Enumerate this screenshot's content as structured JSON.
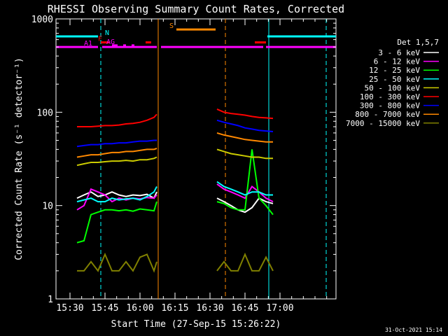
{
  "chart_data": {
    "type": "line",
    "title": "RHESSI Observing Summary Count Rates, Corrected",
    "xlabel": "Start Time (27-Sep-15 15:26:22)",
    "ylabel": "Corrected Count Rate (s⁻¹ detector⁻¹)",
    "y_scale": "log",
    "ylim": [
      1,
      1000
    ],
    "y_ticks": [
      1,
      10,
      100,
      1000
    ],
    "y_tick_labels": [
      "1",
      "10",
      "100",
      "1000"
    ],
    "xlim_minutes": [
      15.4,
      17.4
    ],
    "x_ticks": [
      "15:30",
      "15:45",
      "16:00",
      "16:15",
      "16:30",
      "16:45",
      "17:00"
    ],
    "legend_title": "Det 1,5,7",
    "legend_placement": "right",
    "footer_date": "31-Oct-2021 15:14",
    "series": [
      {
        "name": "3 - 6 keV",
        "color": "#ffffff",
        "segments": [
          {
            "x": [
              15.55,
              15.6,
              15.65,
              15.7,
              15.75,
              15.8,
              15.85,
              15.9,
              15.95,
              16.0,
              16.05,
              16.1,
              16.12
            ],
            "y": [
              12,
              13,
              14,
              12.5,
              13,
              14,
              13,
              12.5,
              13,
              12.8,
              13.2,
              12,
              14
            ]
          },
          {
            "x": [
              16.55,
              16.6,
              16.65,
              16.7,
              16.75,
              16.8,
              16.85,
              16.9,
              16.95
            ],
            "y": [
              12,
              11,
              10,
              9,
              8.5,
              9.5,
              12,
              11,
              10.5
            ]
          }
        ]
      },
      {
        "name": "6 - 12 keV",
        "color": "#ff00ff",
        "segments": [
          {
            "x": [
              15.55,
              15.6,
              15.65,
              15.7,
              15.75,
              15.8,
              15.85,
              15.9,
              15.95,
              16.0,
              16.05,
              16.1,
              16.12
            ],
            "y": [
              9,
              10,
              15,
              14,
              13,
              11,
              12,
              11.5,
              12,
              11.8,
              12.2,
              12,
              13
            ]
          },
          {
            "x": [
              16.55,
              16.6,
              16.65,
              16.7,
              16.75,
              16.8,
              16.85,
              16.9,
              16.95
            ],
            "y": [
              17,
              15,
              14,
              13,
              12,
              16,
              14,
              12,
              11
            ]
          }
        ]
      },
      {
        "name": "12 - 25 keV",
        "color": "#00ff00",
        "segments": [
          {
            "x": [
              15.55,
              15.6,
              15.65,
              15.7,
              15.75,
              15.8,
              15.85,
              15.9,
              15.95,
              16.0,
              16.05,
              16.1,
              16.12
            ],
            "y": [
              4,
              4.2,
              8,
              8.5,
              9,
              9,
              8.8,
              9,
              8.7,
              9.2,
              9,
              8.8,
              11
            ]
          },
          {
            "x": [
              16.55,
              16.6,
              16.65,
              16.7,
              16.75,
              16.8,
              16.85,
              16.9,
              16.95
            ],
            "y": [
              11,
              10.5,
              9.5,
              9,
              9,
              40,
              12,
              10,
              8
            ]
          }
        ]
      },
      {
        "name": "25 - 50 keV",
        "color": "#00ffff",
        "segments": [
          {
            "x": [
              15.55,
              15.6,
              15.65,
              15.7,
              15.75,
              15.8,
              15.85,
              15.9,
              15.95,
              16.0,
              16.05,
              16.1,
              16.12
            ],
            "y": [
              11,
              11.5,
              12,
              11,
              11,
              12,
              11.5,
              11.8,
              12,
              11.5,
              12.5,
              14,
              16
            ]
          },
          {
            "x": [
              16.55,
              16.6,
              16.65,
              16.7,
              16.75,
              16.8,
              16.85,
              16.9,
              16.95
            ],
            "y": [
              18,
              16,
              15,
              14,
              13,
              14,
              14,
              13,
              13
            ]
          }
        ]
      },
      {
        "name": "50 - 100 keV",
        "color": "#cccc00",
        "segments": [
          {
            "x": [
              15.55,
              15.6,
              15.65,
              15.7,
              15.75,
              15.8,
              15.85,
              15.9,
              15.95,
              16.0,
              16.05,
              16.1,
              16.12
            ],
            "y": [
              27,
              28,
              29,
              29,
              29.5,
              30,
              30,
              30.5,
              30,
              31,
              31,
              32,
              33
            ]
          },
          {
            "x": [
              16.55,
              16.6,
              16.65,
              16.7,
              16.75,
              16.8,
              16.85,
              16.9,
              16.95
            ],
            "y": [
              40,
              38,
              36,
              35,
              34,
              33,
              33,
              32,
              32
            ]
          }
        ]
      },
      {
        "name": "100 - 300 keV",
        "color": "#ff0000",
        "segments": [
          {
            "x": [
              15.55,
              15.6,
              15.65,
              15.7,
              15.75,
              15.8,
              15.85,
              15.9,
              15.95,
              16.0,
              16.05,
              16.1,
              16.12
            ],
            "y": [
              70,
              70,
              70,
              71,
              72,
              72,
              73,
              75,
              76,
              78,
              82,
              88,
              95
            ]
          },
          {
            "x": [
              16.55,
              16.6,
              16.65,
              16.7,
              16.75,
              16.8,
              16.85,
              16.9,
              16.95
            ],
            "y": [
              108,
              100,
              97,
              95,
              93,
              90,
              88,
              87,
              86
            ]
          }
        ]
      },
      {
        "name": "300 - 800 keV",
        "color": "#0000ff",
        "segments": [
          {
            "x": [
              15.55,
              15.6,
              15.65,
              15.7,
              15.75,
              15.8,
              15.85,
              15.9,
              15.95,
              16.0,
              16.05,
              16.1,
              16.12
            ],
            "y": [
              43,
              44,
              45,
              45,
              46,
              46,
              47,
              47,
              48,
              49,
              49,
              50,
              50
            ]
          },
          {
            "x": [
              16.55,
              16.6,
              16.65,
              16.7,
              16.75,
              16.8,
              16.85,
              16.9,
              16.95
            ],
            "y": [
              82,
              78,
              75,
              72,
              68,
              66,
              64,
              63,
              62
            ]
          }
        ]
      },
      {
        "name": "800 - 7000 keV",
        "color": "#ff8800",
        "segments": [
          {
            "x": [
              15.55,
              15.6,
              15.65,
              15.7,
              15.75,
              15.8,
              15.85,
              15.9,
              15.95,
              16.0,
              16.05,
              16.1,
              16.12
            ],
            "y": [
              33,
              34,
              35,
              35,
              36,
              37,
              37,
              38,
              38,
              39,
              40,
              40,
              41
            ]
          },
          {
            "x": [
              16.55,
              16.6,
              16.65,
              16.7,
              16.75,
              16.8,
              16.85,
              16.9,
              16.95
            ],
            "y": [
              60,
              57,
              55,
              53,
              51,
              50,
              49,
              48,
              48
            ]
          }
        ]
      },
      {
        "name": "7000 - 15000 keV",
        "color": "#808000",
        "segments": [
          {
            "x": [
              15.55,
              15.6,
              15.65,
              15.7,
              15.75,
              15.8,
              15.85,
              15.9,
              15.95,
              16.0,
              16.05,
              16.1,
              16.12
            ],
            "y": [
              2,
              2,
              2.5,
              2,
              3,
              2,
              2,
              2.5,
              2,
              2.8,
              3,
              2,
              2.5
            ]
          },
          {
            "x": [
              16.55,
              16.6,
              16.65,
              16.7,
              16.75,
              16.8,
              16.85,
              16.9,
              16.95
            ],
            "y": [
              2,
              2.5,
              2,
              2,
              3,
              2,
              2,
              2.8,
              2
            ]
          }
        ]
      }
    ],
    "state_bars": [
      {
        "label": "N",
        "color": "#00ffff",
        "y": 650,
        "label_x": 15.75,
        "ranges": [
          [
            15.4,
            15.7
          ],
          [
            16.91,
            17.4
          ]
        ]
      },
      {
        "label": "S",
        "color": "#ff8800",
        "y": 770,
        "label_x": 16.21,
        "ranges": [
          [
            16.26,
            16.54
          ]
        ]
      },
      {
        "label": "F",
        "color": "#ff0000",
        "y": 560,
        "label_x": 15.7,
        "ranges": [
          [
            15.72,
            15.78
          ],
          [
            16.04,
            16.08
          ],
          [
            16.82,
            16.9
          ]
        ]
      },
      {
        "label": "AG",
        "color": "#ff00ff",
        "y": 520,
        "label_x": 15.76,
        "ranges": [
          [
            15.8,
            15.84
          ],
          [
            15.88,
            15.9
          ],
          [
            15.94,
            15.96
          ]
        ]
      },
      {
        "label": "A1",
        "color": "#ff00ff",
        "y": 500,
        "label_x": 15.6,
        "ranges": [
          [
            15.4,
            15.7
          ],
          [
            15.73,
            16.12
          ],
          [
            16.15,
            16.88
          ],
          [
            16.9,
            17.4
          ]
        ]
      }
    ],
    "vertical_markers": [
      {
        "x": 15.72,
        "color": "#00ffff",
        "style": "dashed"
      },
      {
        "x": 16.13,
        "color": "#ff8800",
        "style": "solid"
      },
      {
        "x": 16.61,
        "color": "#ff8800",
        "style": "dashed"
      },
      {
        "x": 16.92,
        "color": "#00ffff",
        "style": "solid"
      },
      {
        "x": 17.33,
        "color": "#00ffff",
        "style": "dashed"
      }
    ]
  }
}
